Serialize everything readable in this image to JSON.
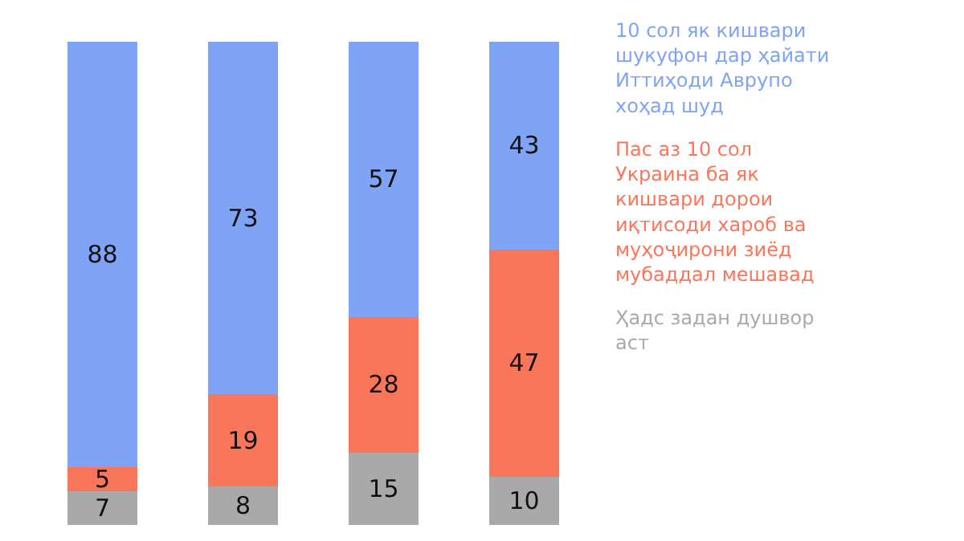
{
  "chart_data": {
    "type": "bar",
    "stacked": true,
    "data_labels": true,
    "tick_labels": false,
    "legend": "right",
    "categories": [
      null,
      null,
      null,
      null
    ],
    "series": [
      {
        "name": "Ҳадс задан душвор аст",
        "color": "#a9a9a9",
        "values": [
          7,
          8,
          15,
          10
        ]
      },
      {
        "name": "Пас аз 10 сол Украина ба як кишвари дорои иқтисоди хароб ва муҳоҷирони зиёд мубаддал мешавад",
        "color": "#f9765a",
        "values": [
          5,
          19,
          28,
          47
        ]
      },
      {
        "name": "10 сол як кишвари шукуфон дар ҳайати Иттиҳоди Аврупо хоҳад шуд",
        "color": "#7fa3f5",
        "values": [
          88,
          73,
          57,
          43
        ]
      }
    ]
  }
}
